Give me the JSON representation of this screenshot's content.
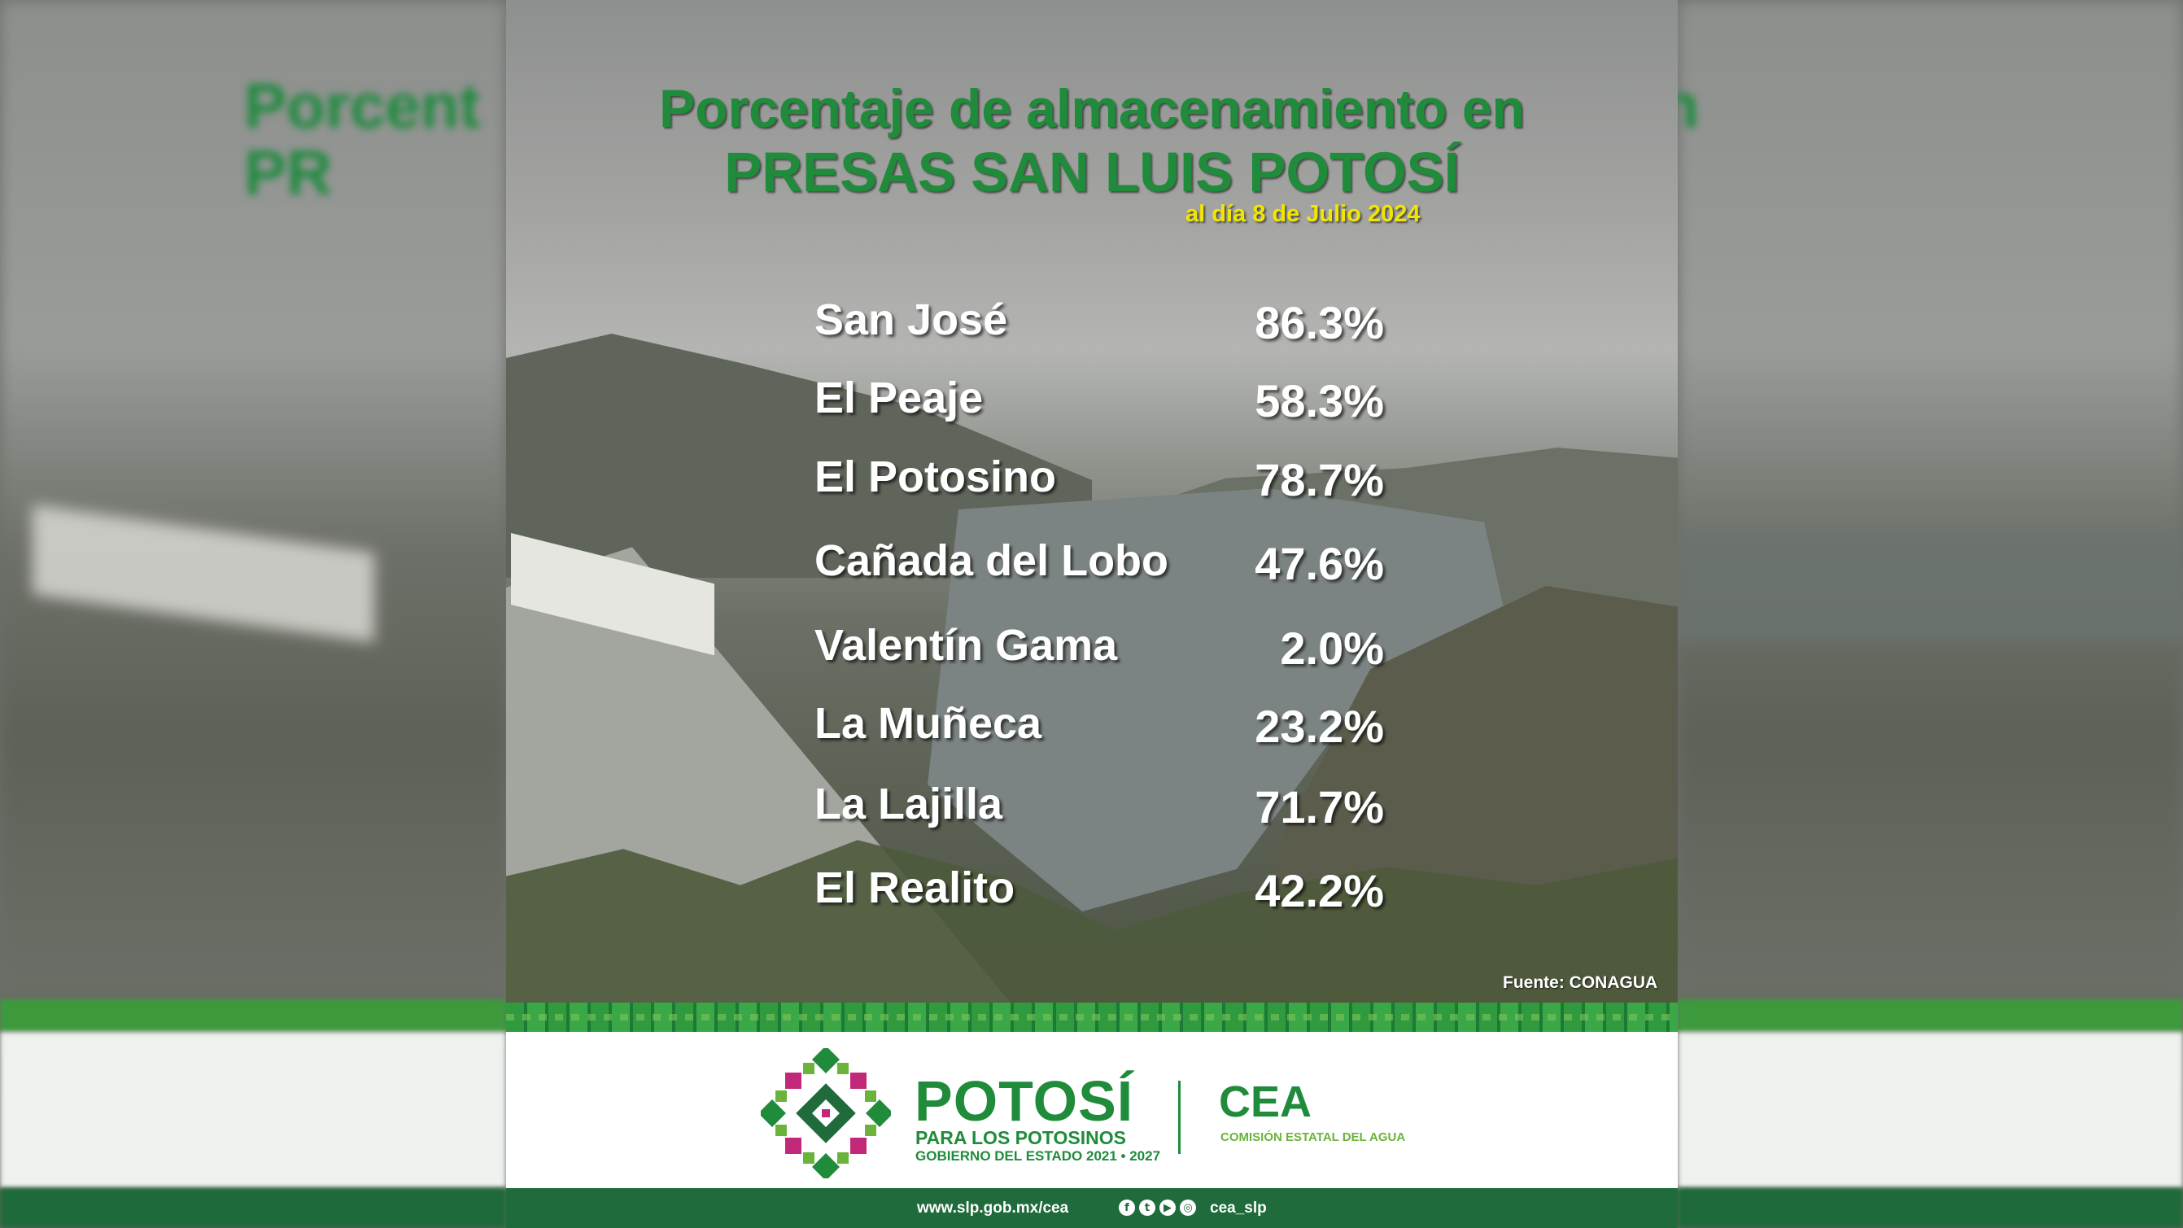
{
  "header": {
    "title_line1": "Porcentaje de almacenamiento en",
    "title_line2": "PRESAS SAN LUIS POTOSÍ",
    "date": "al día 8 de Julio 2024"
  },
  "dams": [
    {
      "name": "San José",
      "percent": "86.3%"
    },
    {
      "name": "El Peaje",
      "percent": "58.3%"
    },
    {
      "name": "El Potosino",
      "percent": "78.7%"
    },
    {
      "name": "Cañada del Lobo",
      "percent": "47.6%"
    },
    {
      "name": "Valentín Gama",
      "percent": "2.0%"
    },
    {
      "name": "La Muñeca",
      "percent": "23.2%"
    },
    {
      "name": "La Lajilla",
      "percent": "71.7%"
    },
    {
      "name": "El Realito",
      "percent": "42.2%"
    }
  ],
  "source": "Fuente: CONAGUA",
  "footer": {
    "brand_name": "POTOSÍ",
    "brand_subtitle": "PARA LOS POTOSINOS",
    "brand_government": "GOBIERNO DEL ESTADO 2021 • 2027",
    "agency_name": "CEA",
    "agency_full": "COMISIÓN ESTATAL DEL AGUA",
    "website": "www.slp.gob.mx/cea",
    "social_handle": "cea_slp",
    "social_icons": [
      "facebook-icon",
      "twitter-icon",
      "youtube-icon",
      "instagram-icon"
    ]
  },
  "colors": {
    "brand_green": "#1f8b3b",
    "date_yellow": "#f2e600",
    "bar_dark_green": "#1f6b3b"
  }
}
